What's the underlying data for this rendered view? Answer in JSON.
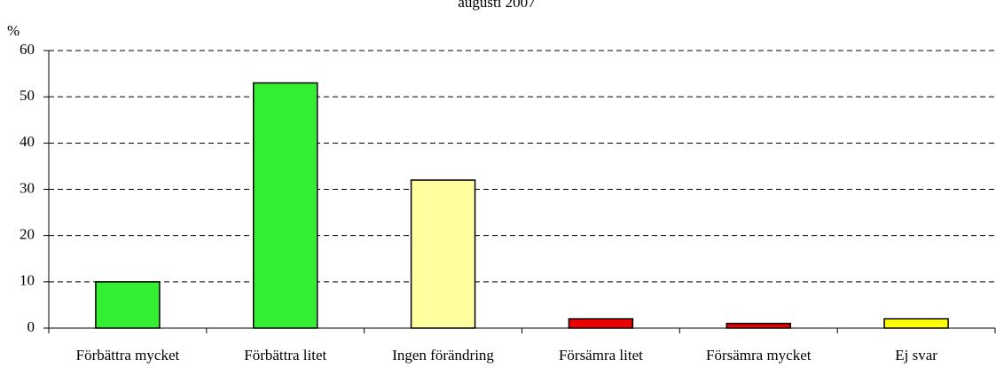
{
  "chart_data": {
    "type": "bar",
    "title": "augusti 2007",
    "y_label": "%",
    "categories": [
      "Förbättra mycket",
      "Förbättra litet",
      "Ingen förändring",
      "Försämra litet",
      "Försämra mycket",
      "Ej svar"
    ],
    "values": [
      10,
      53,
      32,
      2,
      1,
      2
    ],
    "colors": [
      "#33ee33",
      "#33ee33",
      "#ffffa0",
      "#ee0000",
      "#ee0000",
      "#ffff00"
    ],
    "ylim": [
      0,
      60
    ],
    "yticks": [
      0,
      10,
      20,
      30,
      40,
      50,
      60
    ],
    "grid": true
  }
}
